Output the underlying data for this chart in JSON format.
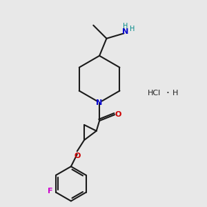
{
  "bg_color": "#e8e8e8",
  "line_color": "#1a1a1a",
  "N_color": "#0000cc",
  "O_color": "#cc0000",
  "F_color": "#cc00cc",
  "NH_color": "#008888",
  "line_width": 1.5,
  "figsize": [
    3.0,
    3.0
  ],
  "dpi": 100,
  "xlim": [
    0,
    10
  ],
  "ylim": [
    0,
    10
  ]
}
